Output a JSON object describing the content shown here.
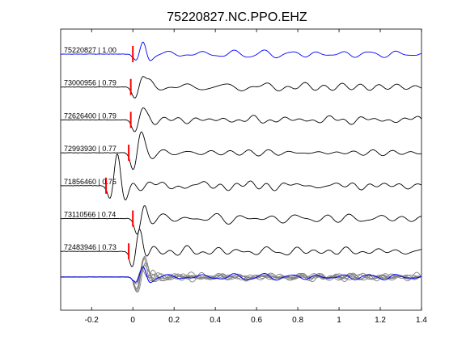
{
  "chart_data": {
    "type": "line",
    "title": "75220827.NC.PPO.EHZ",
    "xlabel": "",
    "ylabel": "",
    "xlim": [
      -0.35,
      1.4
    ],
    "xticks": [
      "-0.2",
      "0",
      "0.2",
      "0.4",
      "0.6",
      "0.8",
      "1",
      "1.2",
      "1.4"
    ],
    "xtick_values": [
      -0.2,
      0,
      0.2,
      0.4,
      0.6,
      0.8,
      1.0,
      1.2,
      1.4
    ],
    "grid": false,
    "colors": {
      "master": "#0000ff",
      "trace": "#000000",
      "stack": "#808080",
      "pick": "#ff0000"
    },
    "traces": [
      {
        "label": "75220827 | 1.00",
        "pick_time": 0.0,
        "color": "master"
      },
      {
        "label": "73000956 | 0.79",
        "pick_time": -0.01,
        "color": "trace"
      },
      {
        "label": "72626400 | 0.79",
        "pick_time": -0.01,
        "color": "trace"
      },
      {
        "label": "72993930 | 0.77",
        "pick_time": -0.02,
        "color": "trace"
      },
      {
        "label": "71856460 | 0.75",
        "pick_time": -0.13,
        "color": "trace"
      },
      {
        "label": "73110566 | 0.74",
        "pick_time": 0.0,
        "color": "trace"
      },
      {
        "label": "72483946 | 0.73",
        "pick_time": -0.02,
        "color": "trace"
      }
    ],
    "stack": {
      "pick_time": 0.0,
      "count": 7
    }
  }
}
